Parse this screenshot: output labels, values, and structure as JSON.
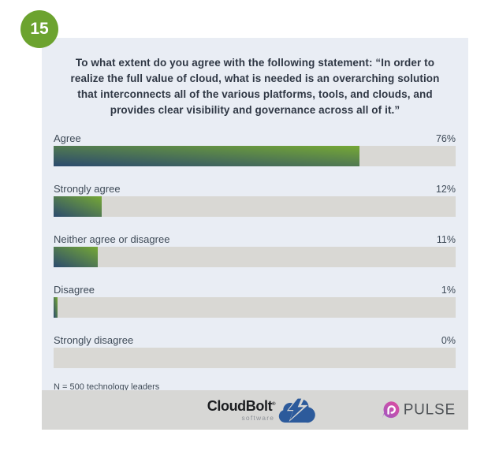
{
  "badge": {
    "number": "15"
  },
  "question": {
    "lines": [
      "To what extent do you agree with the following statement: “In order to",
      "realize the full value of cloud, what is needed is an overarching solution",
      "that interconnects all of the various platforms, tools, and clouds, and",
      "provides clear visibility and governance across all of it.”"
    ]
  },
  "chart_data": {
    "type": "bar",
    "orientation": "horizontal",
    "title": "To what extent do you agree with the following statement: “In order to realize the full value of cloud, what is needed is an overarching solution that interconnects all of the various platforms, tools, and clouds, and provides clear visibility and governance across all of it.”",
    "categories": [
      "Agree",
      "Strongly agree",
      "Neither agree or disagree",
      "Disagree",
      "Strongly disagree"
    ],
    "values": [
      76,
      12,
      11,
      1,
      0
    ],
    "value_labels": [
      "76%",
      "12%",
      "11%",
      "1%",
      "0%"
    ],
    "xlim": [
      0,
      100
    ],
    "grid": false,
    "legend": false,
    "sample_note": "N = 500 technology leaders",
    "bar_gradient": [
      "#2b4a6e",
      "#76a835"
    ],
    "track_color": "#d9d8d4"
  },
  "note": "N = 500 technology leaders",
  "footer": {
    "cloudbolt": {
      "name": "CloudBolt",
      "trademark": "®",
      "sub": "software"
    },
    "pulse": {
      "name": "PULSE"
    }
  },
  "colors": {
    "badge_green": "#6ca32f",
    "card_bg": "#e9edf4",
    "track_gray": "#d9d8d4",
    "footer_gray": "#d7d7d5",
    "bar_blue": "#2b4a6e",
    "bar_green": "#76a835",
    "title_text": "#2f3744",
    "label_text": "#3e4a57",
    "cloudbolt_blue": "#2c5a9b",
    "pulse_pink": "#e14b9d",
    "pulse_purple": "#9c59c4"
  }
}
